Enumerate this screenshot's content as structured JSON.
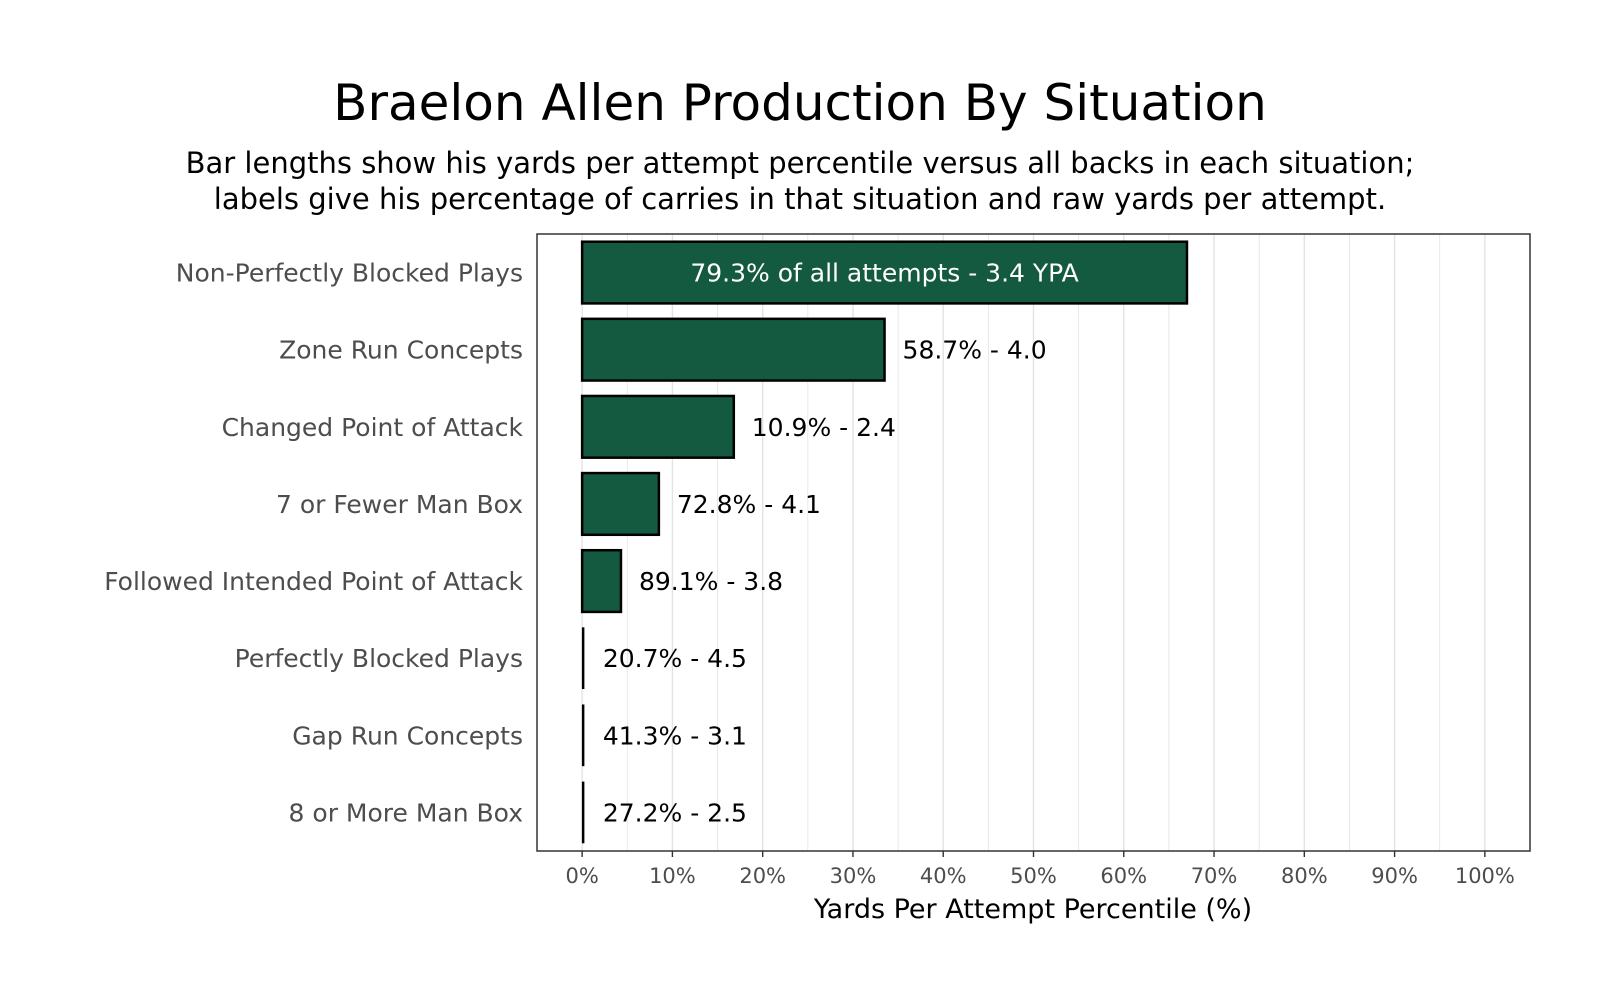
{
  "chart_data": {
    "type": "bar",
    "orientation": "horizontal",
    "title": "Braelon Allen Production By Situation",
    "subtitle_lines": [
      "Bar lengths show his yards per attempt percentile versus all backs in each situation;",
      "labels give his percentage of carries in that situation and raw yards per attempt."
    ],
    "categories": [
      "Non-Perfectly Blocked Plays",
      "Zone Run Concepts",
      "Changed Point of Attack",
      "7 or Fewer Man Box",
      "Followed Intended Point of Attack",
      "Perfectly Blocked Plays",
      "Gap Run Concepts",
      "8 or More Man Box"
    ],
    "values": [
      67,
      33.5,
      16.8,
      8.5,
      4.3,
      0.3,
      0.3,
      0.3
    ],
    "data_labels": [
      "79.3% of all attempts - 3.4 YPA",
      "58.7% - 4.0",
      "10.9% - 2.4",
      "72.8% - 4.1",
      "89.1% - 3.8",
      "20.7% - 4.5",
      "41.3% - 3.1",
      "27.2% - 2.5"
    ],
    "xlabel": "Yards Per Attempt Percentile (%)",
    "ylabel": "",
    "xlim": [
      -5,
      105
    ],
    "x_ticks": [
      0,
      10,
      20,
      30,
      40,
      50,
      60,
      70,
      80,
      90,
      100
    ],
    "x_tick_labels": [
      "0%",
      "10%",
      "20%",
      "30%",
      "40%",
      "50%",
      "60%",
      "70%",
      "80%",
      "90%",
      "100%"
    ],
    "grid": true,
    "legend": "none",
    "colors": {
      "bar_fill": "#145a41",
      "bar_stroke": "#000000",
      "grid": "#e3e3e3",
      "panel_border": "#333333",
      "inside_label": "#ffffff",
      "outside_label": "#000000"
    }
  }
}
